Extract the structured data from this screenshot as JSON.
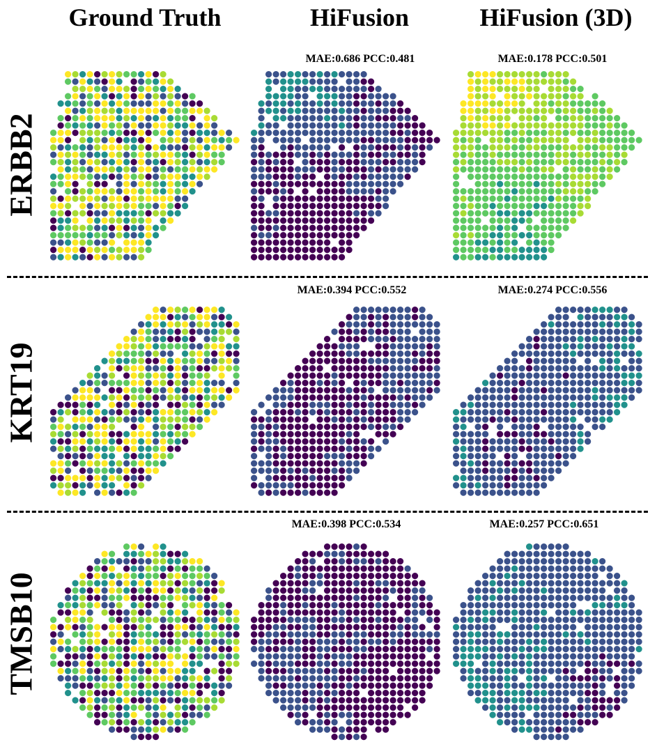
{
  "columns": [
    {
      "title": "Ground Truth"
    },
    {
      "title": "HiFusion"
    },
    {
      "title": "HiFusion (3D)"
    }
  ],
  "rows": [
    {
      "gene": "ERBB2",
      "shape": "quad",
      "metrics": [
        "",
        "MAE:0.686 PCC:0.481",
        "MAE:0.178 PCC:0.501"
      ]
    },
    {
      "gene": "KRT19",
      "shape": "oblique",
      "metrics": [
        "",
        "MAE:0.394 PCC:0.552",
        "MAE:0.274 PCC:0.556"
      ]
    },
    {
      "gene": "TMSB10",
      "shape": "round",
      "metrics": [
        "",
        "MAE:0.398 PCC:0.534",
        "MAE:0.257 PCC:0.651"
      ]
    }
  ],
  "colormap": {
    "name": "viridis",
    "colors": [
      "#440154",
      "#3b528b",
      "#21918c",
      "#5ec962",
      "#a8db34",
      "#fde725"
    ]
  }
}
